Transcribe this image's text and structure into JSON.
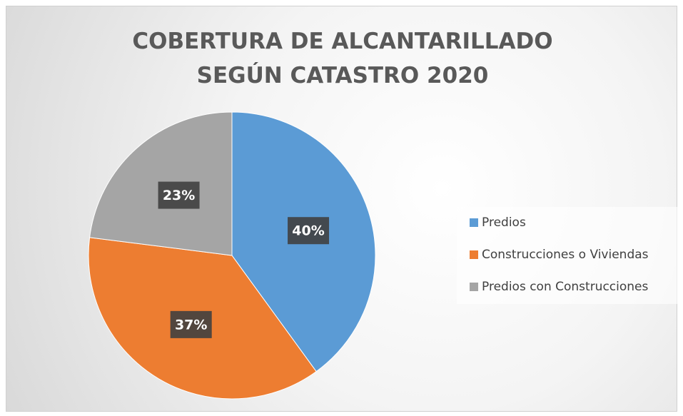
{
  "chart_data": {
    "type": "pie",
    "title": "COBERTURA DE ALCANTARILLADO SEGÚN CATASTRO 2020",
    "categories": [
      "Predios",
      "Construcciones o Viviendas",
      "Predios con Construcciones"
    ],
    "values": [
      40,
      37,
      23
    ],
    "value_labels": [
      "40%",
      "37%",
      "23%"
    ],
    "colors": [
      "#5b9bd5",
      "#ed7d31",
      "#a5a5a5"
    ],
    "legend": "right"
  }
}
